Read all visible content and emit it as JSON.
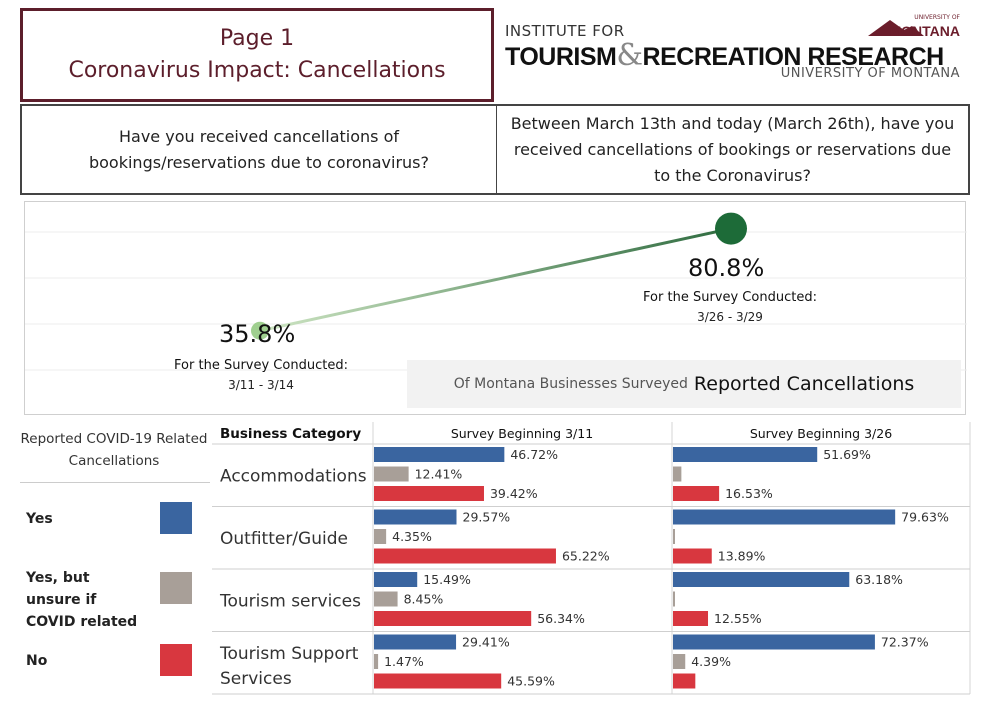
{
  "header": {
    "page": "Page 1",
    "title": "Coronavirus Impact: Cancellations"
  },
  "logo": {
    "line1": "INSTITUTE FOR",
    "tourism": "TOURISM",
    "amp": "&",
    "recreation": "RECREATION RESEARCH",
    "university": "UNIVERSITY OF MONTANA",
    "mt_univ": "UNIVERSITY OF",
    "mt_name": "MONTANA"
  },
  "questions": {
    "left": "Have you received cancellations of bookings/reservations due to coronavirus?",
    "right": "Between March 13th and today (March 26th), have you received cancellations of bookings or reservations due to the Coronavirus?"
  },
  "trend": {
    "points": [
      {
        "value": 35.8,
        "label": "35.8%",
        "caption": "For the Survey Conducted:",
        "dates": "3/11 - 3/14"
      },
      {
        "value": 80.8,
        "label": "80.8%",
        "caption": "For the Survey Conducted:",
        "dates": "3/26 - 3/29"
      }
    ],
    "summary_prefix": "Of Montana Businesses Surveyed",
    "summary_main": "Reported Cancellations"
  },
  "legend": {
    "title": "Reported COVID-19 Related Cancellations",
    "items": [
      {
        "label": "Yes",
        "color": "#3a65a0"
      },
      {
        "label": "Yes, but unsure if COVID related",
        "color": "#a89f98"
      },
      {
        "label": "No",
        "color": "#d8373f"
      }
    ]
  },
  "chart_data": {
    "type": "bar",
    "orientation": "horizontal",
    "row_header": "Business Category",
    "panels": [
      "Survey Beginning 3/11",
      "Survey Beginning 3/26"
    ],
    "categories": [
      "Accommodations",
      "Outfitter/Guide",
      "Tourism services",
      "Tourism Support Services"
    ],
    "series": [
      {
        "name": "Yes",
        "color": "#3a65a0",
        "values": [
          [
            46.72,
            51.69
          ],
          [
            29.57,
            79.63
          ],
          [
            15.49,
            63.18
          ],
          [
            29.41,
            72.37
          ]
        ],
        "labels": [
          [
            "46.72%",
            "51.69%"
          ],
          [
            "29.57%",
            "79.63%"
          ],
          [
            "15.49%",
            "63.18%"
          ],
          [
            "29.41%",
            "72.37%"
          ]
        ]
      },
      {
        "name": "Yes, but unsure if COVID related",
        "color": "#a89f98",
        "values": [
          [
            12.41,
            3.0
          ],
          [
            4.35,
            0.6
          ],
          [
            8.45,
            0.5
          ],
          [
            1.47,
            4.39
          ]
        ],
        "labels": [
          [
            "12.41%",
            ""
          ],
          [
            "4.35%",
            ""
          ],
          [
            "8.45%",
            ""
          ],
          [
            "1.47%",
            "4.39%"
          ]
        ]
      },
      {
        "name": "No",
        "color": "#d8373f",
        "values": [
          [
            39.42,
            16.53
          ],
          [
            65.22,
            13.89
          ],
          [
            56.34,
            12.55
          ],
          [
            45.59,
            8.0
          ]
        ],
        "labels": [
          [
            "39.42%",
            "16.53%"
          ],
          [
            "65.22%",
            "13.89%"
          ],
          [
            "56.34%",
            "12.55%"
          ],
          [
            "45.59%",
            ""
          ]
        ]
      }
    ],
    "xlim": [
      0,
      100
    ]
  }
}
